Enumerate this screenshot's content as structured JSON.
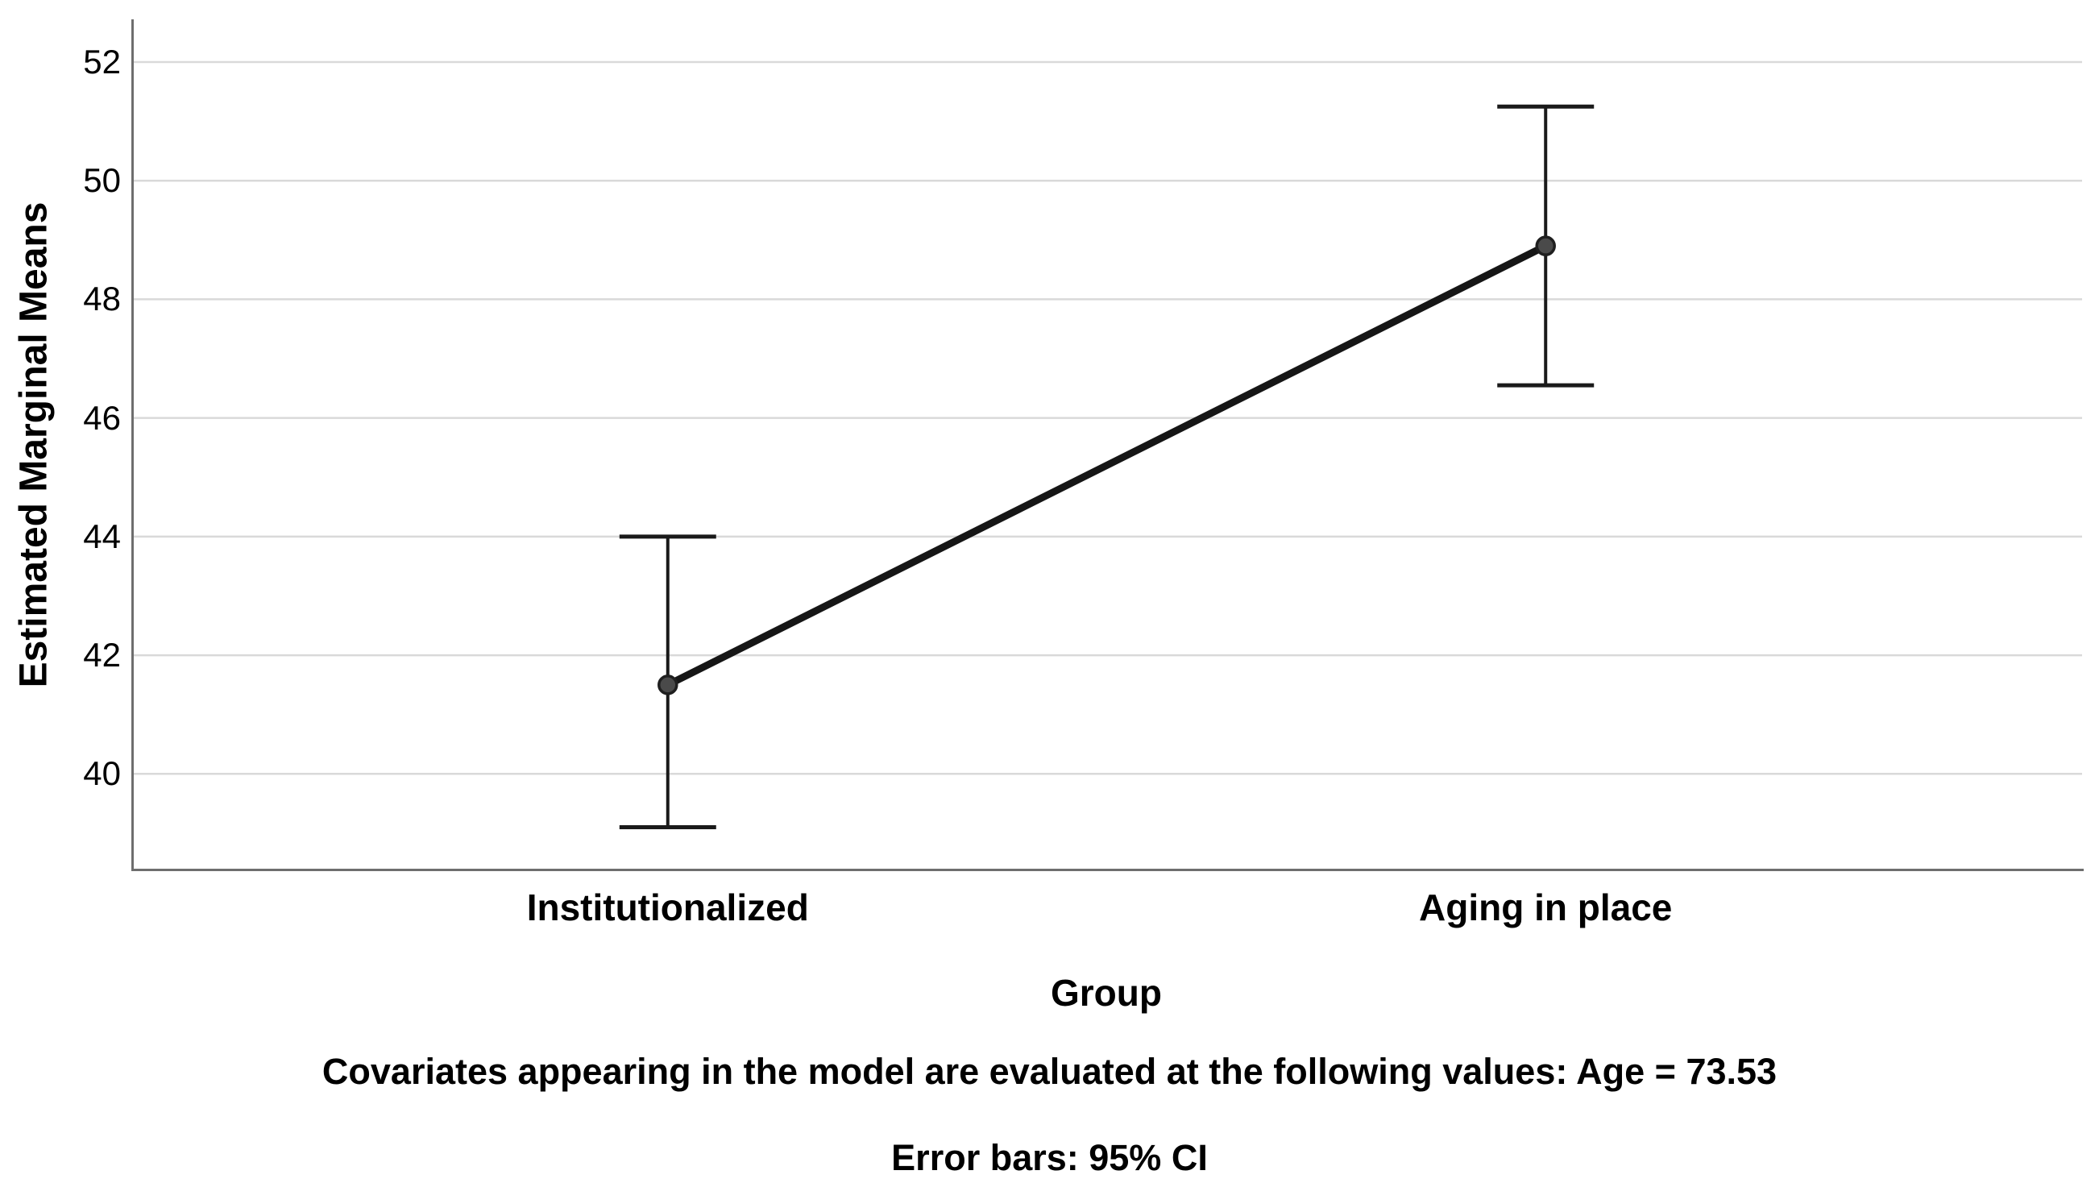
{
  "chart_data": {
    "type": "line",
    "title": "",
    "xlabel": "Group",
    "ylabel": "Estimated Marginal Means",
    "categories": [
      "Institutionalized",
      "Aging in place"
    ],
    "series": [
      {
        "name": "Estimated Marginal Means",
        "means": [
          41.5,
          48.9
        ],
        "ci_lower": [
          39.1,
          46.55
        ],
        "ci_upper": [
          44.0,
          51.25
        ]
      }
    ],
    "error_bars": "95% CI",
    "yticks": [
      40,
      42,
      44,
      46,
      48,
      50,
      52
    ],
    "ylim": [
      38.36,
      52.72
    ],
    "grid": "horizontal-only",
    "legend": "none",
    "colors": {
      "background": "#ffffff",
      "gridline": "#d9d9d9",
      "axis": "#6e6e6e",
      "series_line": "#161616",
      "marker_fill": "#4a4a4a",
      "marker_edge": "#1f1f1f",
      "error_bar": "#1a1a1a",
      "text": "#000000"
    }
  },
  "footnotes": {
    "covariates": "Covariates appearing in the model are evaluated at the following values: Age = 73.53",
    "error_bars": "Error bars: 95% CI"
  }
}
